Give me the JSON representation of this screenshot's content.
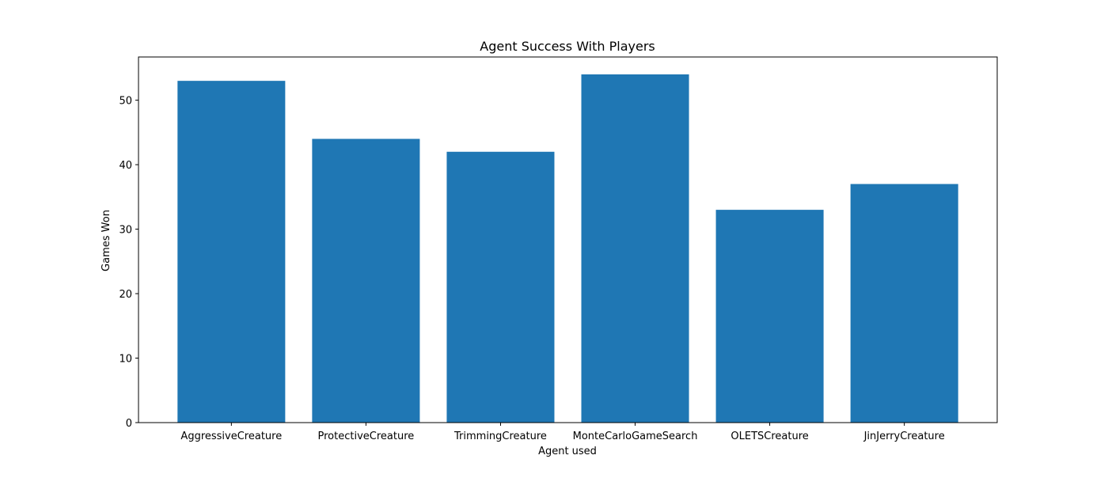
{
  "chart_data": {
    "type": "bar",
    "title": "Agent Success With Players",
    "xlabel": "Agent used",
    "ylabel": "Games Won",
    "categories": [
      "AggressiveCreature",
      "ProtectiveCreature",
      "TrimmingCreature",
      "MonteCarloGameSearch",
      "OLETSCreature",
      "JinJerryCreature"
    ],
    "values": [
      53,
      44,
      42,
      54,
      33,
      37
    ],
    "ylim": [
      0,
      56.7
    ],
    "yticks": [
      0,
      10,
      20,
      30,
      40,
      50
    ],
    "bar_color": "#1f77b4",
    "grid": false,
    "legend": false
  }
}
